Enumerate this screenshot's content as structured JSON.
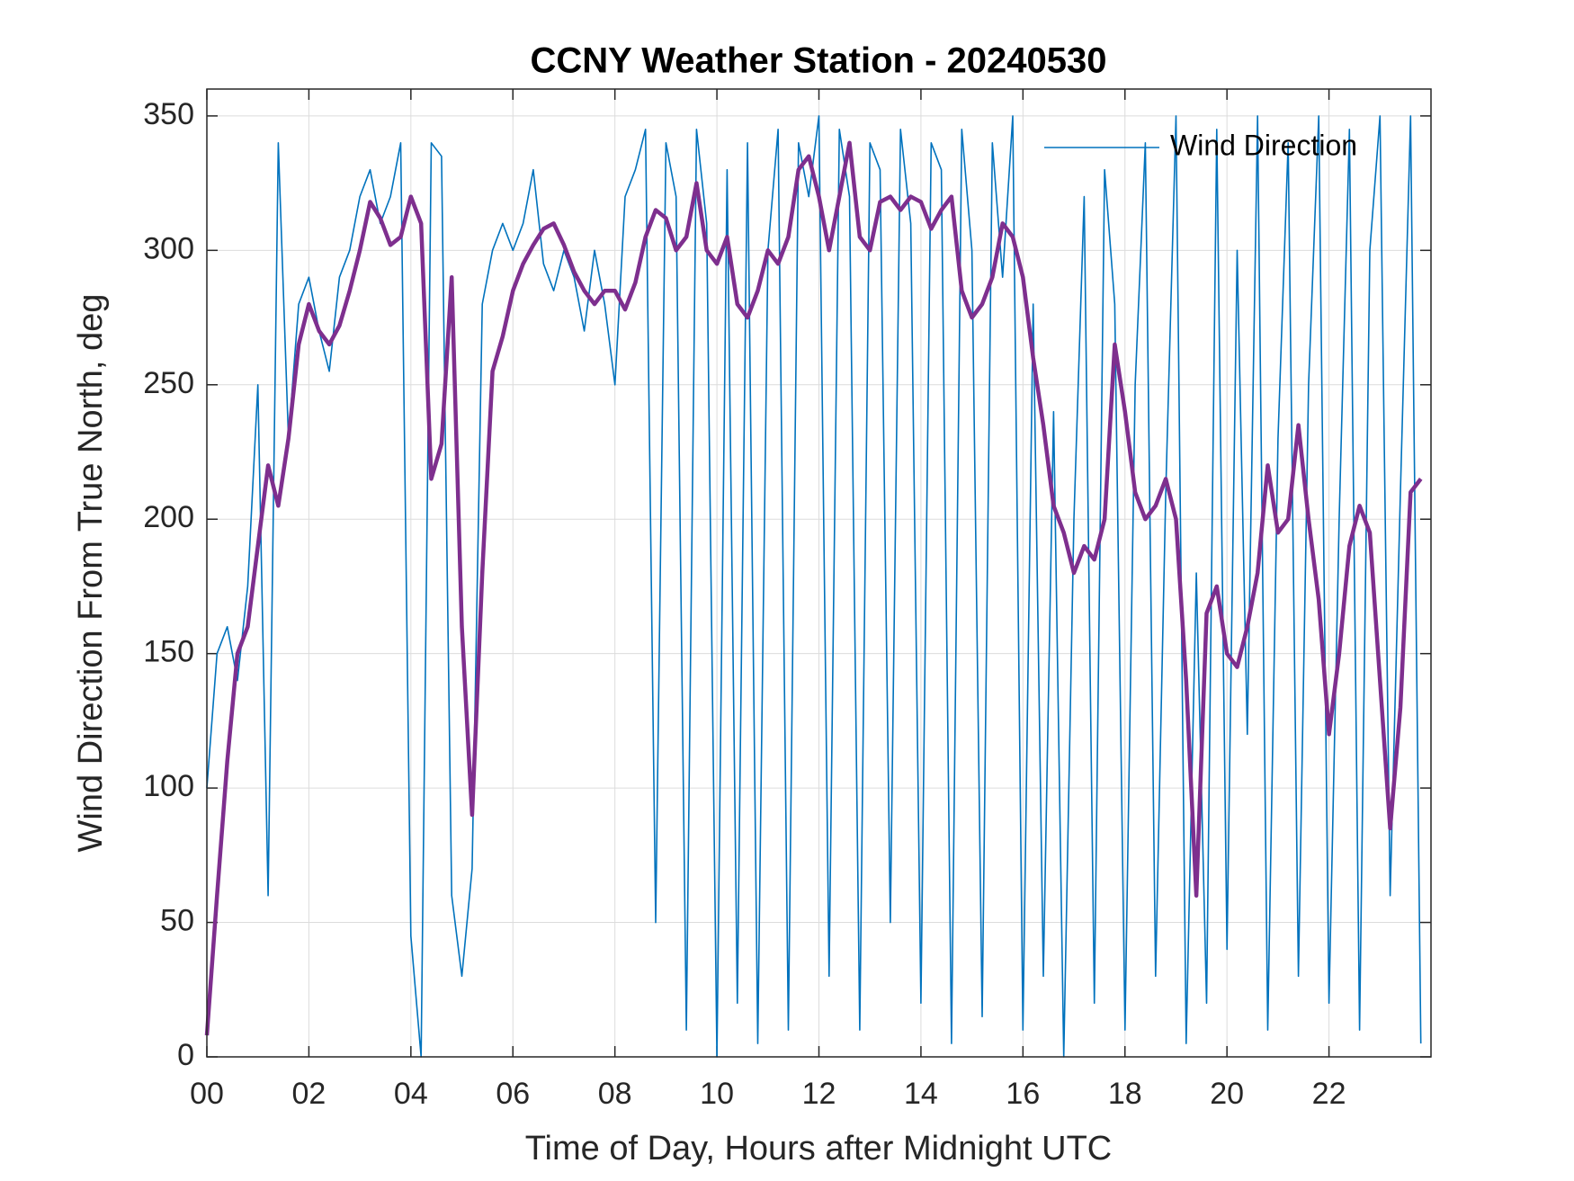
{
  "chart_data": {
    "type": "line",
    "title": "CCNY Weather Station - 20240530",
    "xlabel": "Time of Day, Hours after Midnight UTC",
    "ylabel": "Wind Direction From True North, deg",
    "x": [
      0,
      0.2,
      0.4,
      0.6,
      0.8,
      1,
      1.2,
      1.4,
      1.6,
      1.8,
      2,
      2.2,
      2.4,
      2.6,
      2.8,
      3,
      3.2,
      3.4,
      3.6,
      3.8,
      4,
      4.2,
      4.4,
      4.6,
      4.8,
      5,
      5.2,
      5.4,
      5.6,
      5.8,
      6,
      6.2,
      6.4,
      6.6,
      6.8,
      7,
      7.2,
      7.4,
      7.6,
      7.8,
      8,
      8.2,
      8.4,
      8.6,
      8.8,
      9,
      9.2,
      9.4,
      9.6,
      9.8,
      10,
      10.2,
      10.4,
      10.6,
      10.8,
      11,
      11.2,
      11.4,
      11.6,
      11.8,
      12,
      12.2,
      12.4,
      12.6,
      12.8,
      13,
      13.2,
      13.4,
      13.6,
      13.8,
      14,
      14.2,
      14.4,
      14.6,
      14.8,
      15,
      15.2,
      15.4,
      15.6,
      15.8,
      16,
      16.2,
      16.4,
      16.6,
      16.8,
      17,
      17.2,
      17.4,
      17.6,
      17.8,
      18,
      18.2,
      18.4,
      18.6,
      18.8,
      19,
      19.2,
      19.4,
      19.6,
      19.8,
      20,
      20.2,
      20.4,
      20.6,
      20.8,
      21,
      21.2,
      21.4,
      21.6,
      21.8,
      22,
      22.2,
      22.4,
      22.6,
      22.8,
      23,
      23.2,
      23.4,
      23.6,
      23.8
    ],
    "series": [
      {
        "name": "Wind Direction",
        "color": "#0072bd",
        "values": [
          100,
          150,
          160,
          140,
          175,
          250,
          60,
          340,
          230,
          280,
          290,
          270,
          255,
          290,
          300,
          320,
          330,
          310,
          320,
          340,
          45,
          0,
          340,
          335,
          60,
          30,
          70,
          280,
          300,
          310,
          300,
          310,
          330,
          295,
          285,
          300,
          290,
          270,
          300,
          280,
          250,
          320,
          330,
          345,
          50,
          340,
          320,
          10,
          345,
          310,
          0,
          330,
          20,
          340,
          5,
          300,
          345,
          10,
          340,
          320,
          350,
          30,
          345,
          320,
          10,
          340,
          330,
          50,
          345,
          310,
          20,
          340,
          330,
          5,
          345,
          300,
          15,
          340,
          290,
          350,
          10,
          280,
          30,
          240,
          0,
          200,
          320,
          20,
          330,
          280,
          10,
          250,
          340,
          30,
          210,
          350,
          5,
          180,
          20,
          345,
          40,
          300,
          120,
          350,
          10,
          230,
          340,
          30,
          250,
          350,
          20,
          200,
          345,
          10,
          300,
          350,
          60,
          210,
          350,
          5
        ]
      },
      {
        "color": "#7e2f8e",
        "values": [
          8,
          60,
          110,
          150,
          160,
          190,
          220,
          205,
          230,
          265,
          280,
          270,
          265,
          272,
          285,
          300,
          318,
          312,
          302,
          305,
          320,
          310,
          215,
          228,
          290,
          160,
          90,
          180,
          255,
          268,
          285,
          295,
          302,
          308,
          310,
          302,
          292,
          285,
          280,
          285,
          285,
          278,
          288,
          305,
          315,
          312,
          300,
          305,
          325,
          300,
          295,
          305,
          280,
          275,
          285,
          300,
          295,
          305,
          330,
          335,
          320,
          300,
          320,
          340,
          305,
          300,
          318,
          320,
          315,
          320,
          318,
          308,
          315,
          320,
          285,
          275,
          280,
          290,
          310,
          305,
          290,
          260,
          235,
          205,
          195,
          180,
          190,
          185,
          200,
          265,
          240,
          210,
          200,
          205,
          215,
          200,
          140,
          60,
          165,
          175,
          150,
          145,
          160,
          180,
          220,
          195,
          200,
          235,
          200,
          170,
          120,
          150,
          190,
          205,
          195,
          140,
          85,
          130,
          210,
          215
        ]
      }
    ],
    "xlim": [
      0,
      24
    ],
    "ylim": [
      0,
      360
    ],
    "xticks": [
      {
        "value": 0,
        "label": "00"
      },
      {
        "value": 2,
        "label": "02"
      },
      {
        "value": 4,
        "label": "04"
      },
      {
        "value": 6,
        "label": "06"
      },
      {
        "value": 8,
        "label": "08"
      },
      {
        "value": 10,
        "label": "10"
      },
      {
        "value": 12,
        "label": "12"
      },
      {
        "value": 14,
        "label": "14"
      },
      {
        "value": 16,
        "label": "16"
      },
      {
        "value": 18,
        "label": "18"
      },
      {
        "value": 20,
        "label": "20"
      },
      {
        "value": 22,
        "label": "22"
      }
    ],
    "yticks": [
      0,
      50,
      100,
      150,
      200,
      250,
      300,
      350
    ],
    "grid": true,
    "legend": "northeast"
  }
}
